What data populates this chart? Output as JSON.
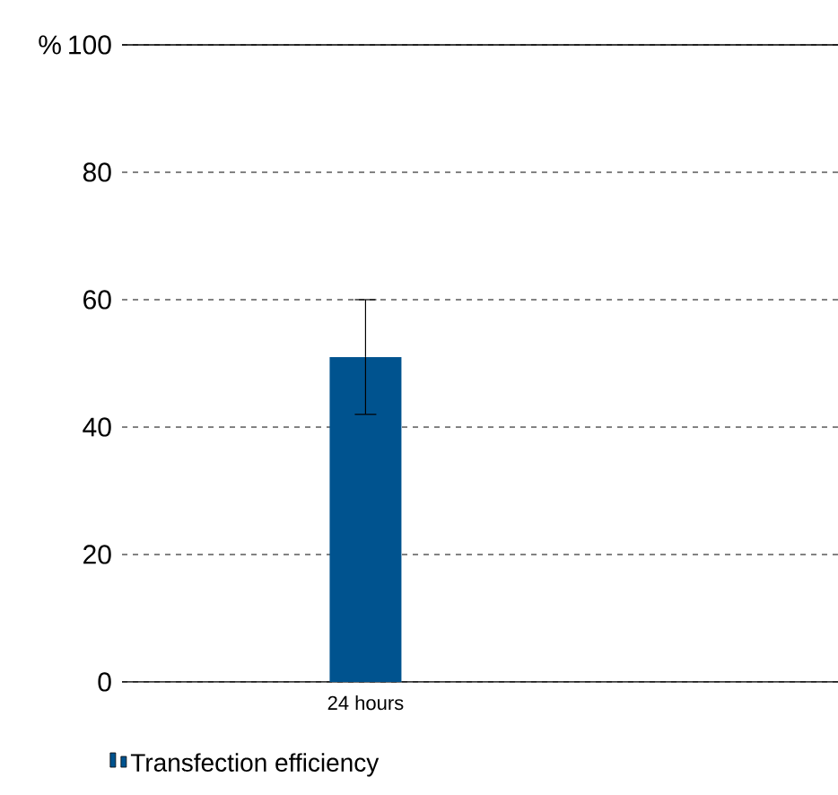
{
  "chart_data": {
    "type": "bar",
    "ylabel": "%",
    "categories": [
      "24 hours"
    ],
    "series": [
      {
        "name": "Transfection efficiency",
        "color": "#00538f",
        "values": [
          51
        ],
        "errors": [
          9
        ]
      }
    ],
    "ylim": [
      0,
      100
    ],
    "yticks": [
      0,
      20,
      40,
      60,
      80,
      100
    ],
    "grid": "y",
    "legend": "bottom left"
  }
}
